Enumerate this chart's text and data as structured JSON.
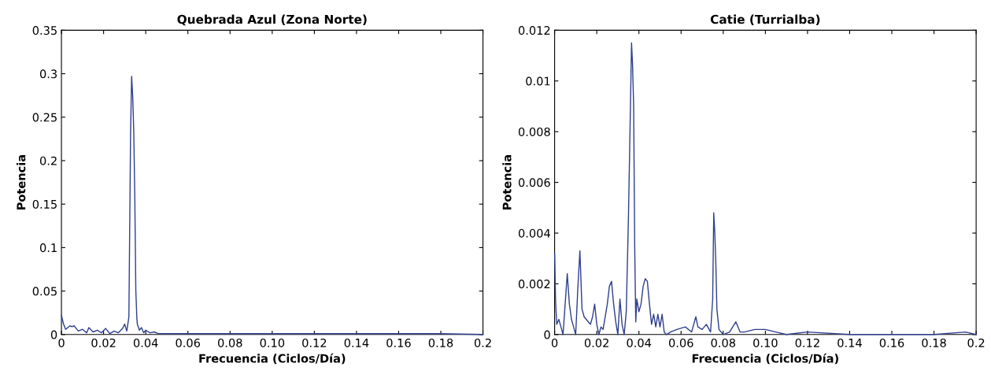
{
  "chart_data": [
    {
      "type": "line",
      "title": "Quebrada Azul (Zona Norte)",
      "xlabel": "Frecuencia (Ciclos/Día)",
      "ylabel": "Potencia",
      "xlim": [
        0,
        0.2
      ],
      "xticks": [
        0,
        0.02,
        0.04,
        0.06,
        0.08,
        {
          "value": 0.1,
          "label": "0.10"
        },
        {
          "value": 0.12,
          "label": "0.12"
        },
        {
          "value": 0.14,
          "label": "0.14"
        },
        {
          "value": 0.16,
          "label": "0.16"
        },
        {
          "value": 0.18,
          "label": "0.18"
        },
        0.2
      ],
      "ylim": [
        0,
        0.35
      ],
      "yticks": [
        0,
        0.05,
        0.1,
        0.15,
        0.2,
        0.25,
        0.3,
        0.35
      ],
      "grid": false,
      "legend": false,
      "series": [
        {
          "color": "#2e3f8f",
          "x": [
            0,
            0.001,
            0.002,
            0.004,
            0.005,
            0.006,
            0.008,
            0.01,
            0.012,
            0.013,
            0.015,
            0.017,
            0.019,
            0.021,
            0.023,
            0.025,
            0.027,
            0.029,
            0.03,
            0.031,
            0.032,
            0.0328,
            0.0333,
            0.0338,
            0.0343,
            0.0348,
            0.0353,
            0.0358,
            0.036,
            0.037,
            0.038,
            0.039,
            0.04,
            0.042,
            0.044,
            0.046,
            0.05,
            0.06,
            0.07,
            0.08,
            0.1,
            0.12,
            0.14,
            0.16,
            0.18,
            0.2
          ],
          "values": [
            0.022,
            0.012,
            0.006,
            0.01,
            0.009,
            0.01,
            0.004,
            0.006,
            0.002,
            0.008,
            0.003,
            0.005,
            0.002,
            0.007,
            0.001,
            0.004,
            0.002,
            0.007,
            0.012,
            0.004,
            0.02,
            0.23,
            0.297,
            0.275,
            0.235,
            0.16,
            0.05,
            0.018,
            0.012,
            0.005,
            0.008,
            0.002,
            0.005,
            0.002,
            0.003,
            0.001,
            0.001,
            0.001,
            0.001,
            0.001,
            0.001,
            0.001,
            0.001,
            0.001,
            0.001,
            0
          ]
        }
      ]
    },
    {
      "type": "line",
      "title": "Catie (Turrialba)",
      "xlabel": "Frecuencia (Ciclos/Día)",
      "ylabel": "Potencia",
      "xlim": [
        0,
        0.2
      ],
      "xticks": [
        0,
        0.02,
        0.04,
        0.06,
        0.08,
        {
          "value": 0.1,
          "label": "0.10"
        },
        {
          "value": 0.12,
          "label": "0.12"
        },
        {
          "value": 0.14,
          "label": "0.14"
        },
        {
          "value": 0.16,
          "label": "0.16"
        },
        {
          "value": 0.18,
          "label": "0.18"
        },
        0.2
      ],
      "ylim": [
        0,
        0.012
      ],
      "yticks": [
        0,
        0.002,
        0.004,
        0.006,
        0.008,
        0.01,
        0.012
      ],
      "grid": false,
      "legend": false,
      "series": [
        {
          "color": "#2e3f8f",
          "x": [
            0,
            0.0005,
            0.001,
            0.002,
            0.003,
            0.004,
            0.005,
            0.006,
            0.007,
            0.008,
            0.009,
            0.01,
            0.011,
            0.012,
            0.013,
            0.014,
            0.015,
            0.016,
            0.017,
            0.018,
            0.019,
            0.02,
            0.021,
            0.022,
            0.023,
            0.025,
            0.026,
            0.027,
            0.028,
            0.029,
            0.03,
            0.031,
            0.032,
            0.033,
            0.034,
            0.035,
            0.036,
            0.0365,
            0.037,
            0.0375,
            0.038,
            0.0385,
            0.039,
            0.04,
            0.041,
            0.042,
            0.043,
            0.044,
            0.045,
            0.046,
            0.047,
            0.048,
            0.049,
            0.05,
            0.051,
            0.052,
            0.053,
            0.055,
            0.058,
            0.062,
            0.065,
            0.067,
            0.068,
            0.07,
            0.072,
            0.074,
            0.075,
            0.0755,
            0.076,
            0.0765,
            0.077,
            0.078,
            0.08,
            0.083,
            0.086,
            0.088,
            0.09,
            0.095,
            0.1,
            0.105,
            0.11,
            0.12,
            0.14,
            0.16,
            0.18,
            0.195,
            0.2
          ],
          "values": [
            0.0032,
            0.0012,
            0.0004,
            0.0006,
            0.0003,
            0.0,
            0.0012,
            0.0024,
            0.0012,
            0.0006,
            0.0003,
            0.0,
            0.0018,
            0.0033,
            0.001,
            0.0007,
            0.0006,
            0.0005,
            0.0004,
            0.0007,
            0.0012,
            0.0004,
            0.0,
            0.0003,
            0.0002,
            0.0012,
            0.0019,
            0.0021,
            0.0012,
            0.0005,
            0.0,
            0.0014,
            0.0004,
            0.0,
            0.0009,
            0.0045,
            0.0091,
            0.0115,
            0.0106,
            0.009,
            0.0035,
            0.0005,
            0.0014,
            0.0009,
            0.0012,
            0.0019,
            0.0022,
            0.0021,
            0.0012,
            0.0004,
            0.0008,
            0.0003,
            0.0008,
            0.0003,
            0.0008,
            0.0001,
            0.0,
            0.0001,
            0.0002,
            0.0003,
            0.0001,
            0.0007,
            0.0003,
            0.0002,
            0.0004,
            0.0001,
            0.0014,
            0.0048,
            0.004,
            0.0028,
            0.001,
            0.0002,
            0.0,
            0.0001,
            0.0005,
            0.0001,
            0.0001,
            0.0002,
            0.0002,
            0.0001,
            0.0,
            0.0001,
            0.0,
            0.0,
            0.0,
            0.0001,
            0.0
          ]
        }
      ]
    }
  ]
}
